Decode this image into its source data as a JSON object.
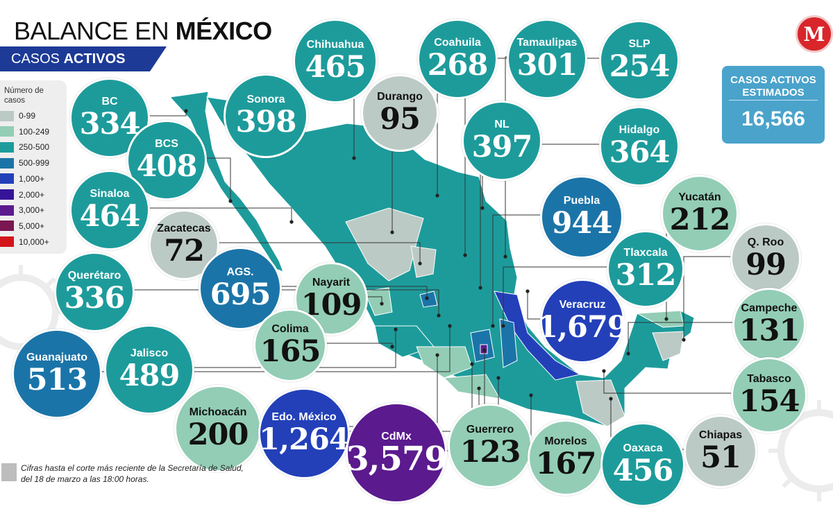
{
  "header": {
    "title_light": "BALANCE EN ",
    "title_bold": "MÉXICO",
    "subtitle_light": "CASOS ",
    "subtitle_bold": "ACTIVOS"
  },
  "logo": {
    "text": "M"
  },
  "legend": {
    "title": "Número de casos",
    "items": [
      {
        "label": "0-99",
        "color": "#bccac5"
      },
      {
        "label": "100-249",
        "color": "#93cdb6"
      },
      {
        "label": "250-500",
        "color": "#1d9b9b"
      },
      {
        "label": "500-999",
        "color": "#1b74a8"
      },
      {
        "label": "1,000+",
        "color": "#2340b9"
      },
      {
        "label": "2,000+",
        "color": "#35149a"
      },
      {
        "label": "3,000+",
        "color": "#5b1a8e"
      },
      {
        "label": "5,000+",
        "color": "#7a1650"
      },
      {
        "label": "10,000+",
        "color": "#d2151b"
      }
    ]
  },
  "total": {
    "title": "CASOS ACTIVOS ESTIMADOS",
    "value": "16,566"
  },
  "states": [
    {
      "id": "bc",
      "name": "BC",
      "value": "334"
    },
    {
      "id": "sonora",
      "name": "Sonora",
      "value": "398"
    },
    {
      "id": "chihuahua",
      "name": "Chihuahua",
      "value": "465"
    },
    {
      "id": "durango",
      "name": "Durango",
      "value": "95"
    },
    {
      "id": "coahuila",
      "name": "Coahuila",
      "value": "268"
    },
    {
      "id": "tamaulipas",
      "name": "Tamaulipas",
      "value": "301"
    },
    {
      "id": "slp",
      "name": "SLP",
      "value": "254"
    },
    {
      "id": "bcs",
      "name": "BCS",
      "value": "408"
    },
    {
      "id": "nl",
      "name": "NL",
      "value": "397"
    },
    {
      "id": "hidalgo",
      "name": "Hidalgo",
      "value": "364"
    },
    {
      "id": "sinaloa",
      "name": "Sinaloa",
      "value": "464"
    },
    {
      "id": "zacatecas",
      "name": "Zacatecas",
      "value": "72"
    },
    {
      "id": "puebla",
      "name": "Puebla",
      "value": "944"
    },
    {
      "id": "yucatan",
      "name": "Yucatán",
      "value": "212"
    },
    {
      "id": "qroo",
      "name": "Q. Roo",
      "value": "99"
    },
    {
      "id": "queretaro",
      "name": "Querétaro",
      "value": "336"
    },
    {
      "id": "ags",
      "name": "AGS.",
      "value": "695"
    },
    {
      "id": "nayarit",
      "name": "Nayarit",
      "value": "109"
    },
    {
      "id": "tlaxcala",
      "name": "Tlaxcala",
      "value": "312"
    },
    {
      "id": "veracruz",
      "name": "Veracruz",
      "value": "1,679"
    },
    {
      "id": "campeche",
      "name": "Campeche",
      "value": "131"
    },
    {
      "id": "guanajuato",
      "name": "Guanajuato",
      "value": "513"
    },
    {
      "id": "jalisco",
      "name": "Jalisco",
      "value": "489"
    },
    {
      "id": "colima",
      "name": "Colima",
      "value": "165"
    },
    {
      "id": "tabasco",
      "name": "Tabasco",
      "value": "154"
    },
    {
      "id": "michoacan",
      "name": "Michoacán",
      "value": "200"
    },
    {
      "id": "edomex",
      "name": "Edo. México",
      "value": "1,264"
    },
    {
      "id": "cdmx",
      "name": "CdMx",
      "value": "3,579"
    },
    {
      "id": "guerrero",
      "name": "Guerrero",
      "value": "123"
    },
    {
      "id": "morelos",
      "name": "Morelos",
      "value": "167"
    },
    {
      "id": "oaxaca",
      "name": "Oaxaca",
      "value": "456"
    },
    {
      "id": "chiapas",
      "name": "Chiapas",
      "value": "51"
    }
  ],
  "note": "Cifras hasta el corte más reciente de la Secretaría de Salud, del 18 de marzo a las 18:00 horas."
}
